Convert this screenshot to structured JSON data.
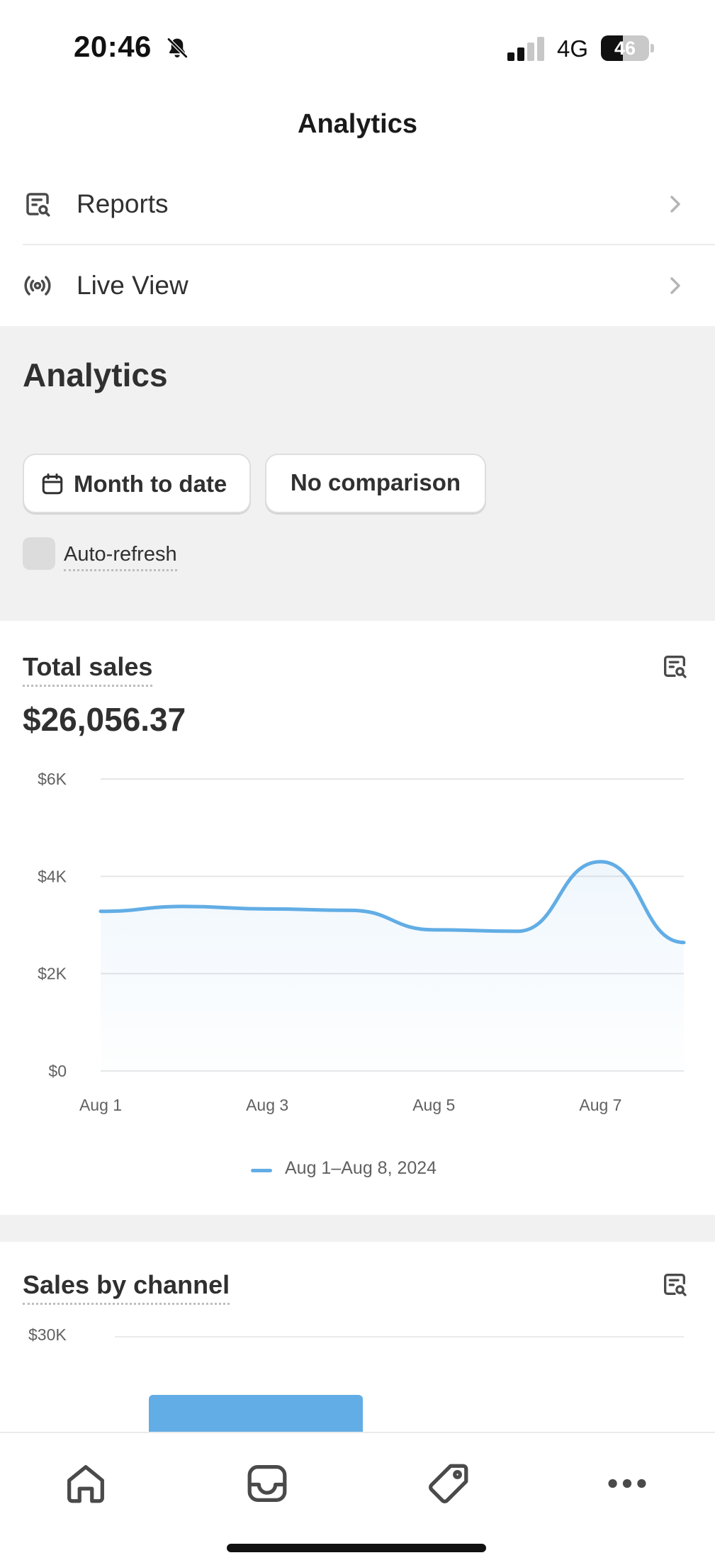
{
  "status_bar": {
    "time": "20:46",
    "network": "4G",
    "battery_level": "46",
    "battery_fraction": 0.46,
    "signal_bars_active": 2,
    "signal_bars_total": 4,
    "icons": [
      "bell-slash-icon",
      "signal-icon",
      "battery-icon"
    ]
  },
  "header": {
    "title": "Analytics"
  },
  "nav": {
    "items": [
      {
        "label": "Reports",
        "icon": "report-search-icon"
      },
      {
        "label": "Live View",
        "icon": "broadcast-icon"
      }
    ]
  },
  "analytics": {
    "heading": "Analytics",
    "date_range_label": "Month to date",
    "comparison_label": "No comparison",
    "auto_refresh_label": "Auto-refresh",
    "auto_refresh_checked": false
  },
  "total_sales": {
    "title": "Total sales",
    "value": "$26,056.37",
    "legend_label": "Aug 1–Aug 8, 2024",
    "line_color": "#62ade5"
  },
  "chart_data": {
    "type": "line",
    "title": "Total sales",
    "x": [
      "Aug 1",
      "Aug 2",
      "Aug 3",
      "Aug 4",
      "Aug 5",
      "Aug 6",
      "Aug 7",
      "Aug 8"
    ],
    "series": [
      {
        "name": "Aug 1–Aug 8, 2024",
        "values": [
          3280,
          3380,
          3330,
          3300,
          2900,
          2870,
          4300,
          2640
        ]
      }
    ],
    "x_tick_labels": [
      "Aug 1",
      "Aug 3",
      "Aug 5",
      "Aug 7"
    ],
    "x_tick_indices": [
      0,
      2,
      4,
      6
    ],
    "y_tick_labels": [
      "$0",
      "$2K",
      "$4K",
      "$6K"
    ],
    "y_tick_values": [
      0,
      2000,
      4000,
      6000
    ],
    "ylim": [
      0,
      6000
    ],
    "grid": true,
    "legend_position": "bottom-center"
  },
  "sales_by_channel": {
    "title": "Sales by channel",
    "y_tick_top": "$30K",
    "bar_color": "#62ade5"
  },
  "tab_bar": {
    "tabs": [
      {
        "name": "home-icon"
      },
      {
        "name": "orders-inbox-icon"
      },
      {
        "name": "products-tag-icon"
      },
      {
        "name": "more-icon"
      }
    ]
  }
}
